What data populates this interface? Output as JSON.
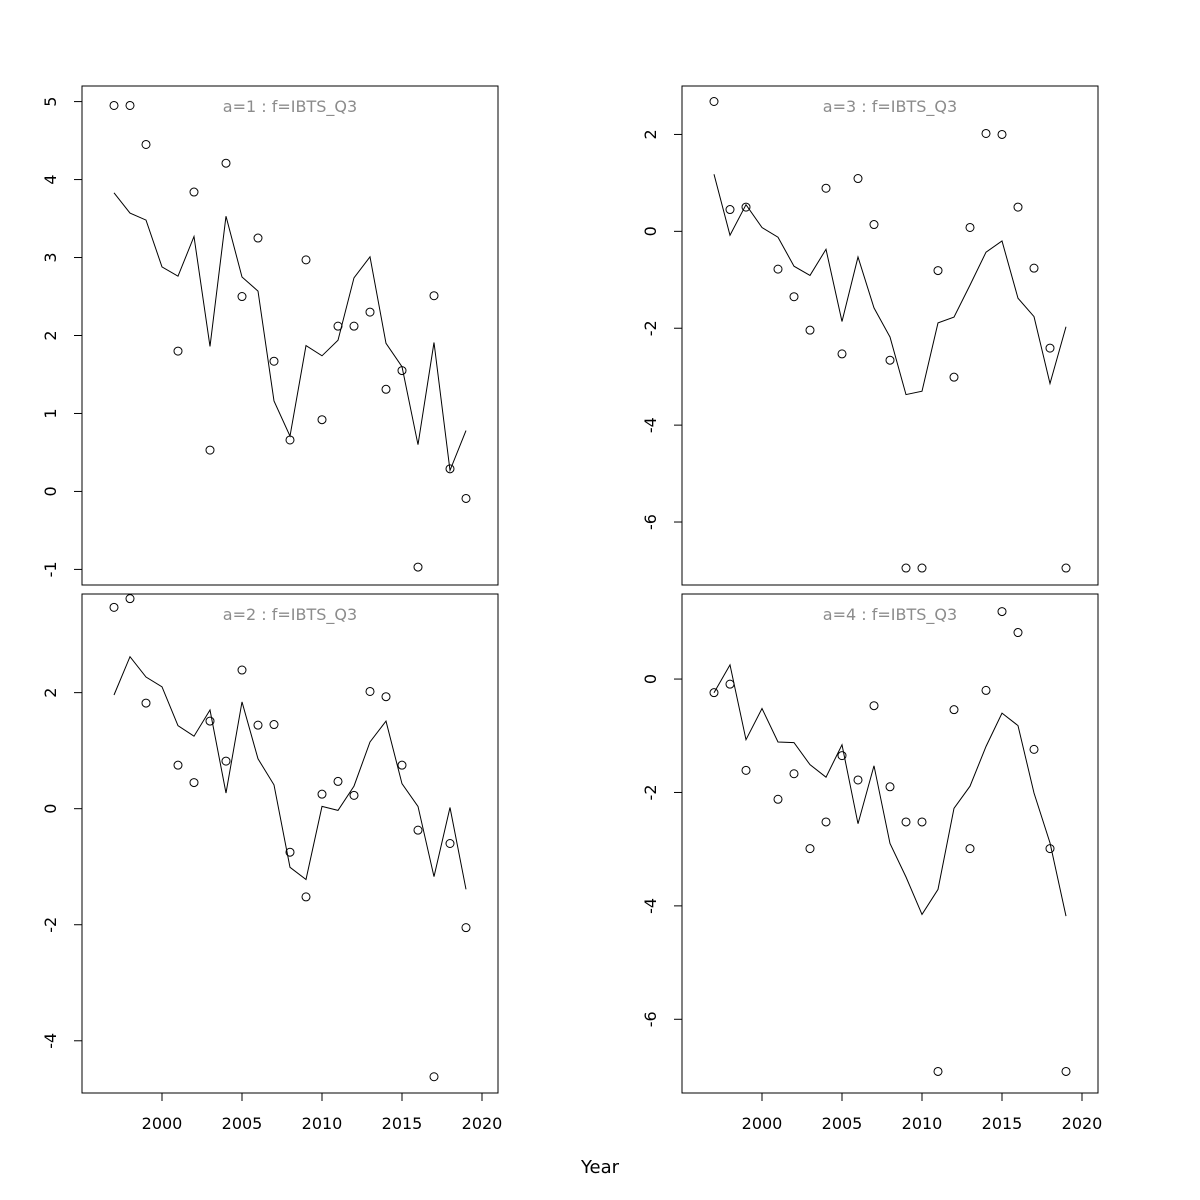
{
  "chart_data": {
    "type": "scatter",
    "xlabel": "Year",
    "xlim": [
      1995,
      2021
    ],
    "xticks": [
      2000,
      2005,
      2010,
      2015,
      2020
    ],
    "years": [
      1997,
      1998,
      1999,
      2000,
      2001,
      2002,
      2003,
      2004,
      2005,
      2006,
      2007,
      2008,
      2009,
      2010,
      2011,
      2012,
      2013,
      2014,
      2015,
      2016,
      2017,
      2018,
      2019
    ],
    "panels": [
      {
        "title": "a=1  :  f=IBTS_Q3",
        "ylim": [
          -1.2,
          5.2
        ],
        "yticks": [
          -1,
          0,
          1,
          2,
          3,
          4,
          5
        ],
        "observed": [
          {
            "x": 1997,
            "y": 4.95
          },
          {
            "x": 1998,
            "y": 4.95
          },
          {
            "x": 1999,
            "y": 4.45
          },
          {
            "x": 2001,
            "y": 1.8
          },
          {
            "x": 2002,
            "y": 3.84
          },
          {
            "x": 2003,
            "y": 0.53
          },
          {
            "x": 2004,
            "y": 4.21
          },
          {
            "x": 2005,
            "y": 2.5
          },
          {
            "x": 2006,
            "y": 3.25
          },
          {
            "x": 2007,
            "y": 1.67
          },
          {
            "x": 2008,
            "y": 0.66
          },
          {
            "x": 2009,
            "y": 2.97
          },
          {
            "x": 2010,
            "y": 0.92
          },
          {
            "x": 2011,
            "y": 2.12
          },
          {
            "x": 2012,
            "y": 2.12
          },
          {
            "x": 2013,
            "y": 2.3
          },
          {
            "x": 2014,
            "y": 1.31
          },
          {
            "x": 2015,
            "y": 1.55
          },
          {
            "x": 2016,
            "y": -0.97
          },
          {
            "x": 2017,
            "y": 2.51
          },
          {
            "x": 2018,
            "y": 0.29
          },
          {
            "x": 2019,
            "y": -0.09
          }
        ],
        "fitted": [
          3.83,
          3.57,
          3.48,
          2.88,
          2.76,
          3.27,
          1.86,
          3.53,
          2.75,
          2.57,
          1.16,
          0.71,
          1.87,
          1.74,
          1.94,
          2.74,
          3.01,
          1.9,
          1.6,
          0.6,
          1.91,
          0.27,
          0.78
        ]
      },
      {
        "title": "a=2  :  f=IBTS_Q3",
        "ylim": [
          -4.9,
          3.7
        ],
        "yticks": [
          -4,
          -2,
          0,
          2
        ],
        "observed": [
          {
            "x": 1997,
            "y": 3.47
          },
          {
            "x": 1998,
            "y": 3.62
          },
          {
            "x": 1999,
            "y": 1.82
          },
          {
            "x": 2001,
            "y": 0.75
          },
          {
            "x": 2002,
            "y": 0.45
          },
          {
            "x": 2003,
            "y": 1.51
          },
          {
            "x": 2004,
            "y": 0.82
          },
          {
            "x": 2005,
            "y": 2.39
          },
          {
            "x": 2006,
            "y": 1.44
          },
          {
            "x": 2007,
            "y": 1.45
          },
          {
            "x": 2008,
            "y": -0.75
          },
          {
            "x": 2009,
            "y": -1.52
          },
          {
            "x": 2010,
            "y": 0.25
          },
          {
            "x": 2011,
            "y": 0.47
          },
          {
            "x": 2012,
            "y": 0.23
          },
          {
            "x": 2013,
            "y": 2.02
          },
          {
            "x": 2014,
            "y": 1.93
          },
          {
            "x": 2015,
            "y": 0.75
          },
          {
            "x": 2016,
            "y": -0.37
          },
          {
            "x": 2017,
            "y": -4.62
          },
          {
            "x": 2018,
            "y": -0.6
          },
          {
            "x": 2019,
            "y": -2.05
          }
        ],
        "fitted": [
          1.96,
          2.62,
          2.27,
          2.1,
          1.43,
          1.25,
          1.7,
          0.27,
          1.84,
          0.86,
          0.41,
          -1.01,
          -1.22,
          0.04,
          -0.03,
          0.39,
          1.15,
          1.51,
          0.43,
          0.04,
          -1.17,
          0.02,
          -1.39
        ]
      },
      {
        "title": "a=3  :  f=IBTS_Q3",
        "ylim": [
          -7.3,
          3.0
        ],
        "yticks": [
          -6,
          -4,
          -2,
          0,
          2
        ],
        "observed": [
          {
            "x": 1997,
            "y": 2.68
          },
          {
            "x": 1998,
            "y": 0.45
          },
          {
            "x": 1999,
            "y": 0.5
          },
          {
            "x": 2001,
            "y": -0.78
          },
          {
            "x": 2002,
            "y": -1.35
          },
          {
            "x": 2003,
            "y": -2.04
          },
          {
            "x": 2004,
            "y": 0.89
          },
          {
            "x": 2005,
            "y": -2.53
          },
          {
            "x": 2006,
            "y": 1.09
          },
          {
            "x": 2007,
            "y": 0.14
          },
          {
            "x": 2008,
            "y": -2.66
          },
          {
            "x": 2009,
            "y": -6.95
          },
          {
            "x": 2010,
            "y": -6.95
          },
          {
            "x": 2011,
            "y": -0.81
          },
          {
            "x": 2012,
            "y": -3.01
          },
          {
            "x": 2013,
            "y": 0.08
          },
          {
            "x": 2014,
            "y": 2.02
          },
          {
            "x": 2015,
            "y": 2.0
          },
          {
            "x": 2016,
            "y": 0.5
          },
          {
            "x": 2017,
            "y": -0.76
          },
          {
            "x": 2018,
            "y": -2.41
          },
          {
            "x": 2019,
            "y": -6.95
          }
        ],
        "fitted": [
          1.18,
          -0.08,
          0.55,
          0.08,
          -0.12,
          -0.72,
          -0.91,
          -0.37,
          -1.86,
          -0.53,
          -1.58,
          -2.18,
          -3.37,
          -3.3,
          -1.89,
          -1.77,
          -1.11,
          -0.43,
          -0.2,
          -1.38,
          -1.76,
          -3.14,
          -1.97
        ]
      },
      {
        "title": "a=4  :  f=IBTS_Q3",
        "ylim": [
          -7.3,
          1.5
        ],
        "yticks": [
          -6,
          -4,
          -2,
          0
        ],
        "observed": [
          {
            "x": 1997,
            "y": -0.24
          },
          {
            "x": 1998,
            "y": -0.09
          },
          {
            "x": 1999,
            "y": -1.61
          },
          {
            "x": 2001,
            "y": -2.12
          },
          {
            "x": 2002,
            "y": -1.67
          },
          {
            "x": 2003,
            "y": -2.99
          },
          {
            "x": 2004,
            "y": -2.52
          },
          {
            "x": 2005,
            "y": -1.35
          },
          {
            "x": 2006,
            "y": -1.78
          },
          {
            "x": 2007,
            "y": -0.47
          },
          {
            "x": 2008,
            "y": -1.9
          },
          {
            "x": 2009,
            "y": -2.52
          },
          {
            "x": 2010,
            "y": -2.52
          },
          {
            "x": 2011,
            "y": -6.92
          },
          {
            "x": 2012,
            "y": -0.54
          },
          {
            "x": 2013,
            "y": -2.99
          },
          {
            "x": 2014,
            "y": -0.2
          },
          {
            "x": 2015,
            "y": 1.19
          },
          {
            "x": 2016,
            "y": 0.82
          },
          {
            "x": 2017,
            "y": -1.24
          },
          {
            "x": 2018,
            "y": -2.99
          },
          {
            "x": 2019,
            "y": -6.92
          }
        ],
        "fitted": [
          -0.24,
          0.25,
          -1.07,
          -0.52,
          -1.11,
          -1.12,
          -1.51,
          -1.73,
          -1.16,
          -2.55,
          -1.53,
          -2.9,
          -3.49,
          -4.15,
          -3.71,
          -2.28,
          -1.89,
          -1.19,
          -0.6,
          -0.82,
          -2.01,
          -2.89,
          -4.18
        ]
      }
    ]
  }
}
